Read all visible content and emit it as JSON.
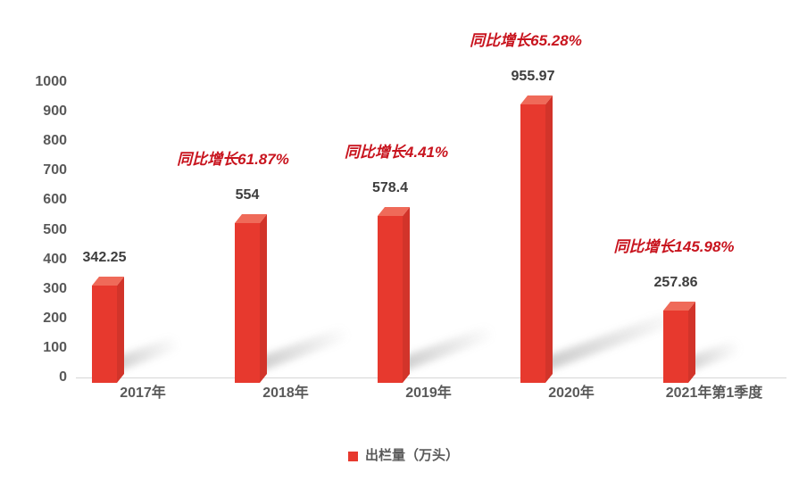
{
  "chart_data": {
    "type": "bar",
    "title": "",
    "categories": [
      "2017年",
      "2018年",
      "2019年",
      "2020年",
      "2021年第1季度"
    ],
    "series": [
      {
        "name": "出栏量（万头）",
        "values": [
          342.25,
          554,
          578.4,
          955.97,
          257.86
        ]
      }
    ],
    "value_labels": [
      "342.25",
      "554",
      "578.4",
      "955.97",
      "257.86"
    ],
    "annotations": [
      null,
      "同比增长61.87%",
      "同比增长4.41%",
      "同比增长65.28%",
      "同比增长145.98%"
    ],
    "xlabel": "",
    "ylabel": "",
    "ylim": [
      0,
      1000
    ],
    "ytick_step": 100,
    "grid": false,
    "style": "3d-column",
    "legend_position": "bottom",
    "legend": {
      "label": "出栏量（万头）"
    }
  },
  "colors": {
    "bar_front": "#e7392e",
    "bar_side": "#d2342a",
    "bar_top": "#ef6a59",
    "legend_marker": "#e7392e",
    "annotation_red": "#c8141e",
    "axis_text": "#595959",
    "value_text": "#3d3d3d",
    "baseline": "#d6d6d6",
    "shadow": "rgba(120,120,120,0.42)"
  }
}
